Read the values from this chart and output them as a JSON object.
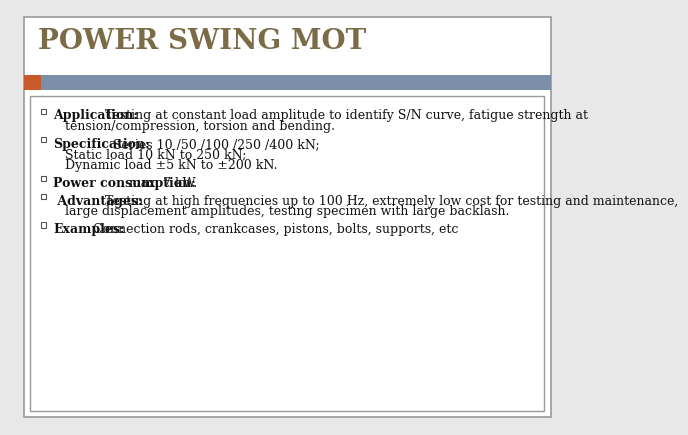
{
  "title": "POWER SWING MOT",
  "title_color": "#7B6B47",
  "slide_bg": "#E8E8E8",
  "header_bar_color": "#7B8FA8",
  "orange_accent_color": "#C8592A",
  "border_color": "#999999",
  "content_box_bg": "#FFFFFF",
  "outer_box_bg": "#FFFFFF",
  "font_family": "serif",
  "title_fontsize": 20,
  "body_fontsize": 9,
  "label_fontsize": 9,
  "bullet_items": [
    {
      "label": "Application:",
      "text_lines": [
        " Testing at constant load amplitude to identify S/N curve, fatigue strength at",
        "tension/compression, torsion and bending."
      ]
    },
    {
      "label": "Specification:",
      "text_lines": [
        " Series 10 /50 /100 /250 /400 kN;",
        "Static load 10 kN to 250 kN;",
        "Dynamic load ±5 kN to ±200 kN."
      ]
    },
    {
      "label": "Power consumption:",
      "text_lines": [
        " max. 7 kW."
      ]
    },
    {
      "label": " Advantages:",
      "text_lines": [
        " Testing at high frequencies up to 100 Hz, extremely low cost for testing and maintenance,",
        "large displacement amplitudes, testing specimen with large backlash."
      ]
    },
    {
      "label": "Examples:",
      "text_lines": [
        " Connection rods, crankcases, pistons, bolts, supports, etc"
      ]
    }
  ]
}
